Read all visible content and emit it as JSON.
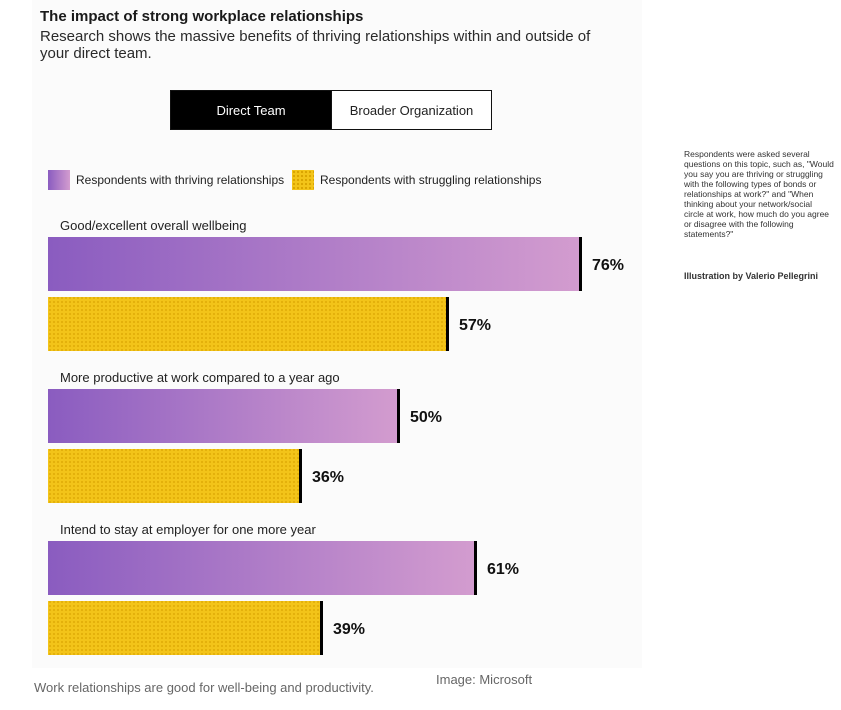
{
  "header": {
    "title": "The impact of strong workplace relationships",
    "subtitle": "Research shows the massive benefits of thriving relationships within and outside of your direct team."
  },
  "tabs": [
    {
      "label": "Direct Team",
      "active": true
    },
    {
      "label": "Broader Organization",
      "active": false
    }
  ],
  "side_note": {
    "text": "Respondents were asked several questions on this topic, such as, \"Would you say you are thriving or struggling with the following types of bonds or relationships at work?\" and \"When thinking about your network/social circle at work, how much do you agree or disagree with the following statements?\"",
    "credit": "Illustration by Valerio Pellegrini"
  },
  "footer": {
    "caption": "Work relationships are good for well-being and productivity.",
    "source": "Image: Microsoft"
  },
  "colors": {
    "thriving_start": "#8a5cc0",
    "thriving_end": "#d39ccf",
    "struggling": "#f3c419",
    "struggling_dots": "#d9a300",
    "marker": "#000000"
  },
  "chart_data": {
    "type": "bar",
    "orientation": "horizontal",
    "categories": [
      "Good/excellent overall wellbeing",
      "More productive at work compared to a year ago",
      "Intend to stay at employer for one more year"
    ],
    "series": [
      {
        "name": "Respondents with thriving relationships",
        "values": [
          76,
          50,
          61
        ],
        "labels": [
          "76%",
          "50%",
          "61%"
        ]
      },
      {
        "name": "Respondents with struggling relationships",
        "values": [
          57,
          36,
          39
        ],
        "labels": [
          "57%",
          "36%",
          "39%"
        ]
      }
    ],
    "xlim": [
      0,
      100
    ],
    "unit": "%",
    "grid": false,
    "legend_position": "top-left"
  }
}
